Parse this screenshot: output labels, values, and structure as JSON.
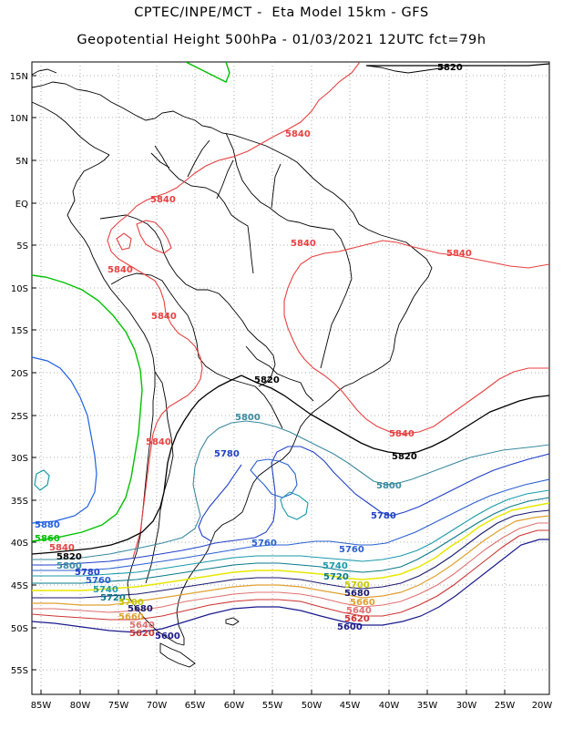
{
  "header": {
    "line1": "CPTEC/INPE/MCT -  Eta Model 15km - GFS",
    "line2": "Geopotential Height 500hPa - 01/03/2021 12UTC fct=79h"
  },
  "axes": {
    "lat_labels": [
      "15N",
      "10N",
      "5N",
      "EQ",
      "5S",
      "10S",
      "15S",
      "20S",
      "25S",
      "30S",
      "35S",
      "40S",
      "45S",
      "50S",
      "55S"
    ],
    "lon_labels": [
      "85W",
      "80W",
      "75W",
      "70W",
      "65W",
      "60W",
      "55W",
      "50W",
      "45W",
      "40W",
      "35W",
      "30W",
      "25W",
      "20W"
    ]
  },
  "colors": {
    "c5560": "#1a1a6e",
    "c5600": "#1a1a8c",
    "c5620": "#cc3333",
    "c5640": "#e07070",
    "c5660": "#e0a030",
    "c5680": "#1a1a6e",
    "c5700": "#e8e800",
    "c5720": "#0a7a8a",
    "c5740": "#1a9aaa",
    "c5760": "#2a60d0",
    "c5780": "#2040c8",
    "c5800": "#3a8aa0",
    "c5820": "#000000",
    "c5840": "#e84040",
    "c5860": "#00c000",
    "c5880": "#2060e0",
    "coast": "#000000"
  },
  "contour_labels": {
    "l5820a": "5820",
    "l5840a": "5840",
    "l5840b": "5840",
    "l5840c": "5840",
    "l5840d": "5840",
    "l5840e": "5840",
    "l5840f": "5840",
    "l5840g": "5840",
    "l5840h": "5840",
    "l5820b": "5820",
    "l5800a": "5800",
    "l5780a": "5780",
    "l5820c": "5820",
    "l5800b": "5800",
    "l5780b": "5780",
    "l5760a": "5760",
    "l5760b": "5760",
    "l5740a": "5740",
    "l5720a": "5720",
    "l5700a": "5700",
    "l5680a": "5680",
    "l5660a": "5660",
    "l5640a": "5640",
    "l5620a": "5620",
    "l5600a": "5600",
    "w5880": "5880",
    "w5860": "5860",
    "w5840": "5840",
    "w5820": "5820",
    "w5800": "5800",
    "w5780": "5780",
    "w5760": "5760",
    "w5740": "5740",
    "w5720": "5720",
    "s5700": "5700",
    "s5680": "5680",
    "s5660": "5660",
    "s5640": "5640",
    "s5620": "5620",
    "s5600": "5600"
  }
}
